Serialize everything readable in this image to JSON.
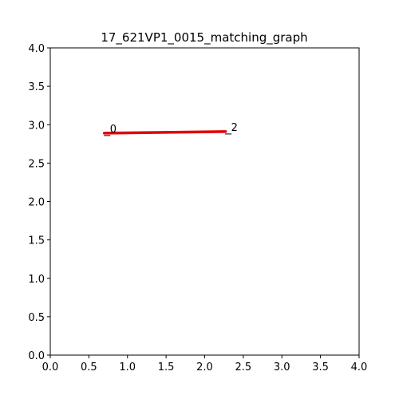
{
  "chart_data": {
    "type": "line",
    "title": "17_621VP1_0015_matching_graph",
    "xlabel": "",
    "ylabel": "",
    "xlim": [
      0.0,
      4.0
    ],
    "ylim": [
      0.0,
      4.0
    ],
    "xticks": [
      "0.0",
      "0.5",
      "1.0",
      "1.5",
      "2.0",
      "2.5",
      "3.0",
      "3.5",
      "4.0"
    ],
    "yticks": [
      "0.0",
      "0.5",
      "1.0",
      "1.5",
      "2.0",
      "2.5",
      "3.0",
      "3.5",
      "4.0"
    ],
    "grid": false,
    "nodes": [
      {
        "label": "0",
        "x": 0.7,
        "y": 2.89
      },
      {
        "label": "2",
        "x": 2.27,
        "y": 2.91
      }
    ],
    "edges": [
      {
        "from": "0",
        "to": "2",
        "color": "#e00000"
      }
    ]
  }
}
